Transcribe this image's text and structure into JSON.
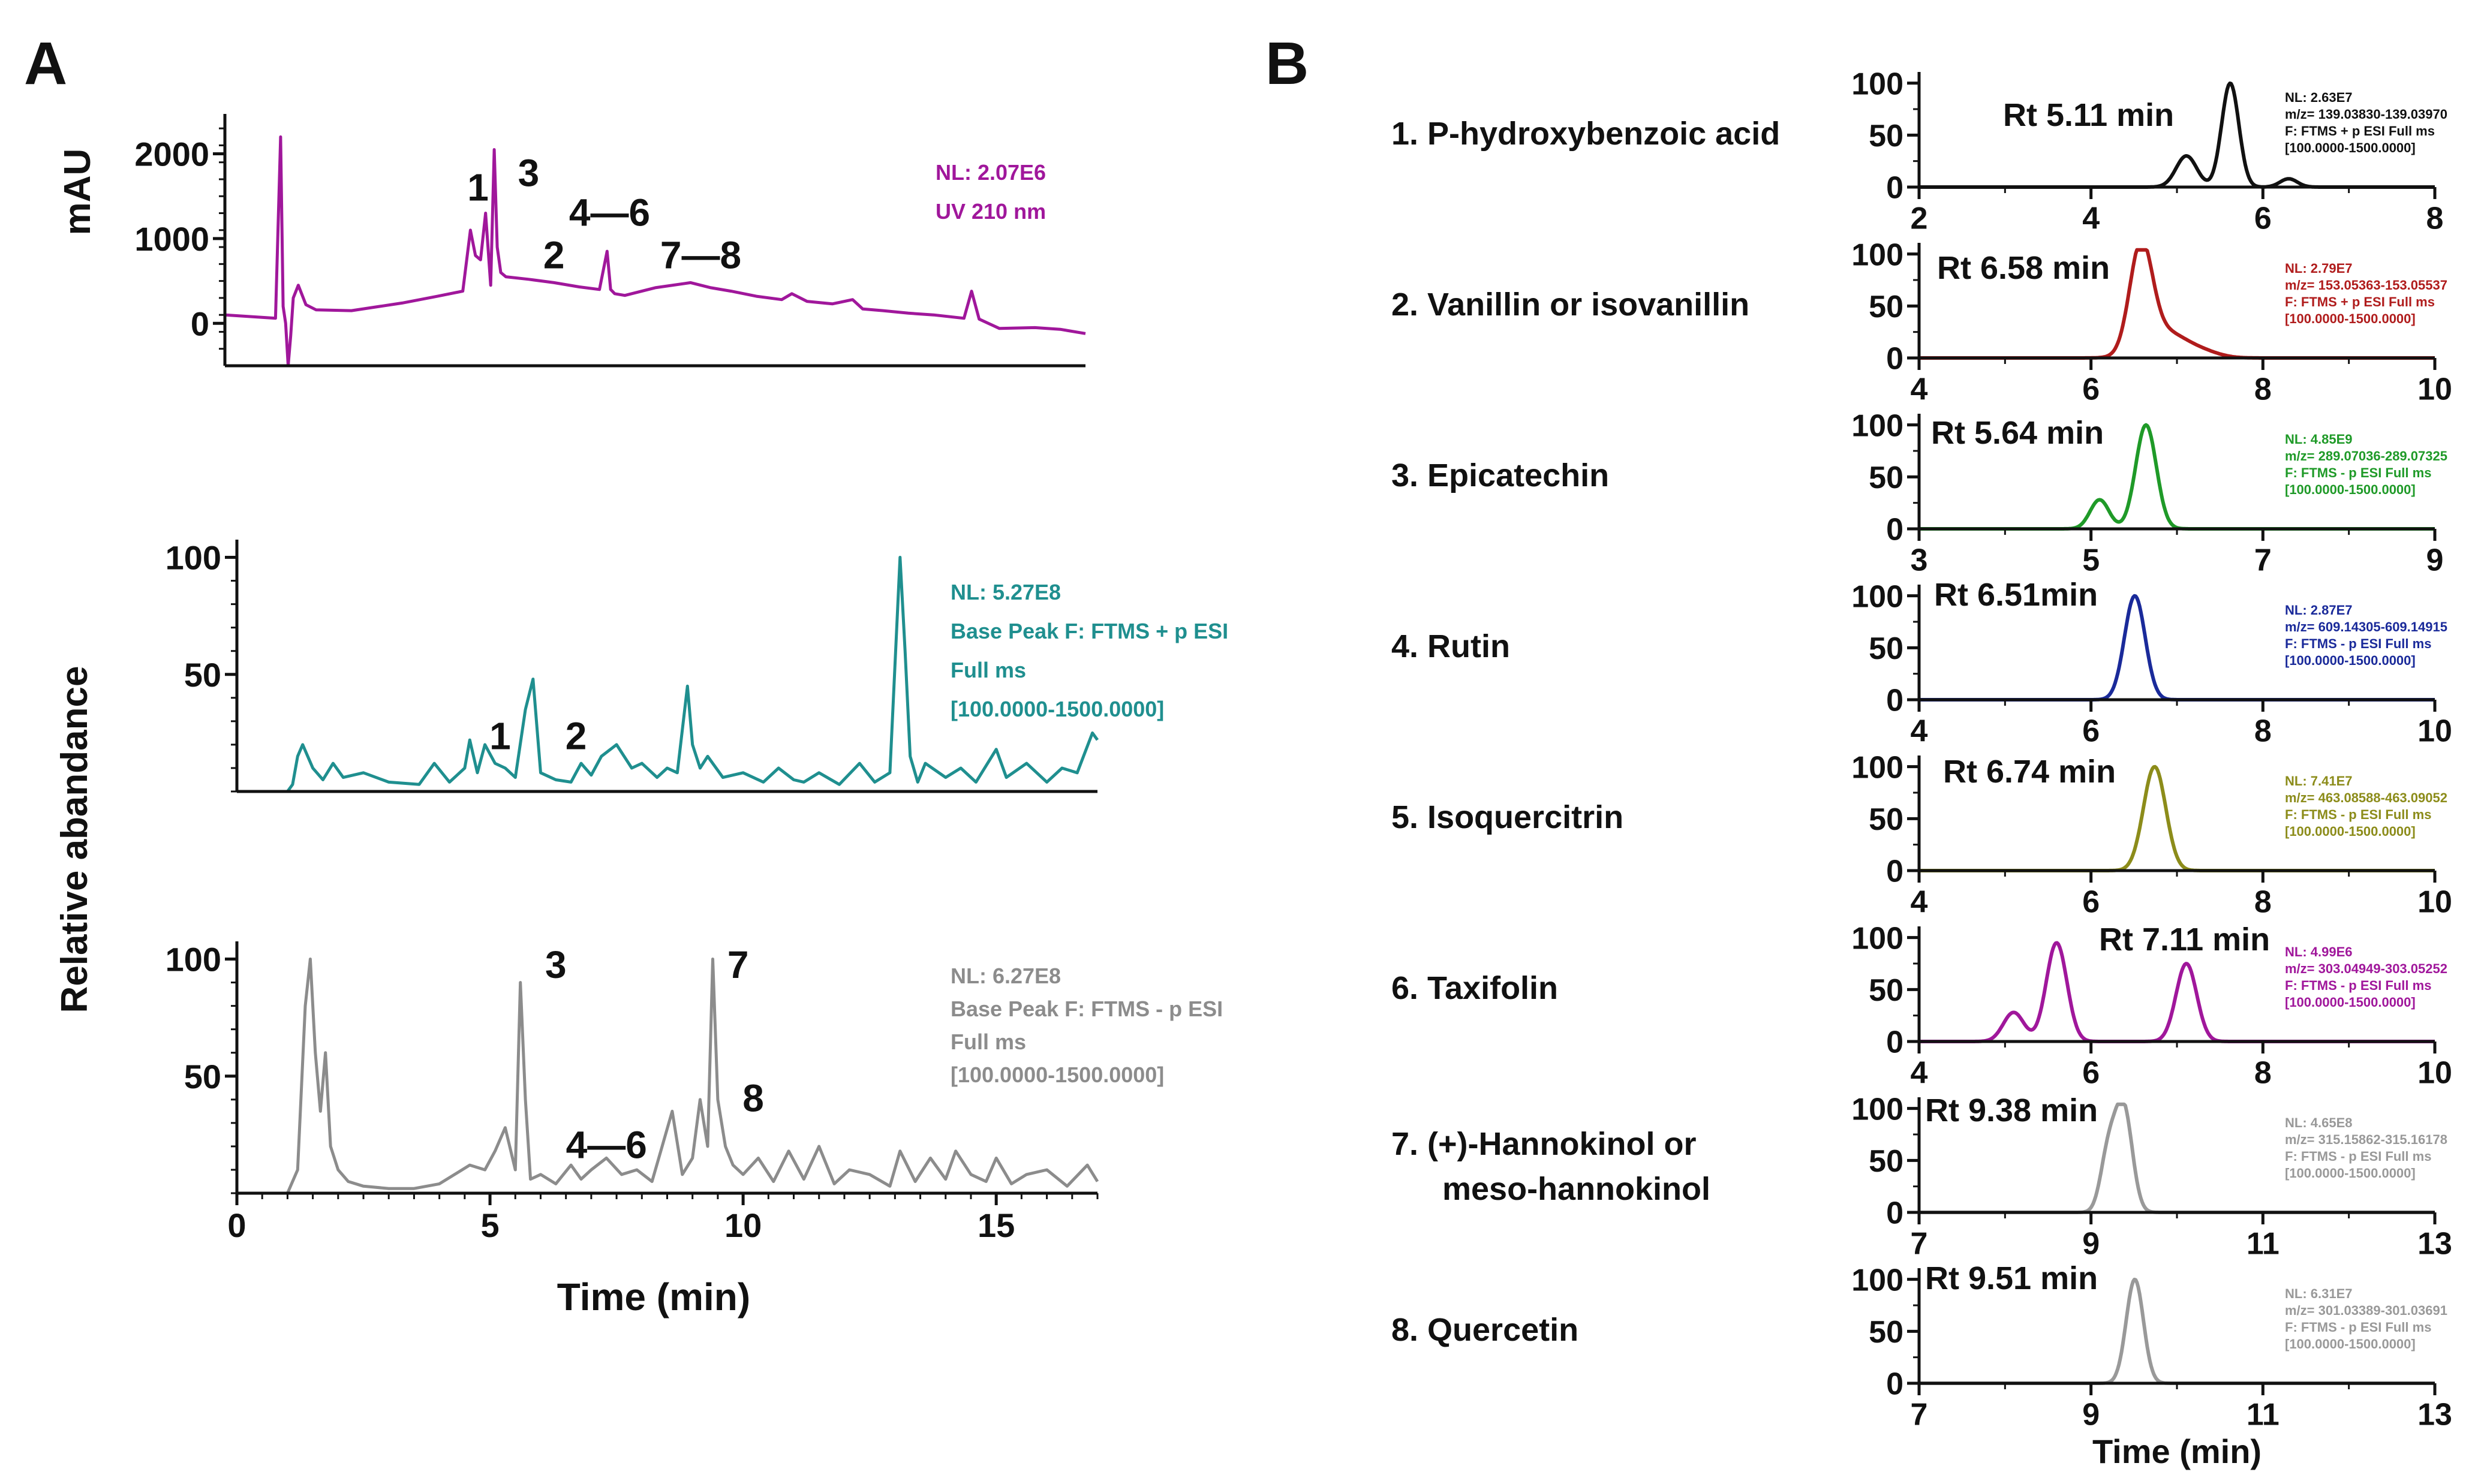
{
  "figure": {
    "panel_a_label": "A",
    "panel_b_label": "B",
    "panel_a_ylabel_top": "mAU",
    "panel_a_ylabel_ms": "Relative abandance",
    "panel_a_xlabel": "Time (min)",
    "panel_b_xlabel": "Time (min)"
  },
  "chart_data": [
    {
      "id": "A1",
      "type": "line",
      "title": "",
      "xlabel": "",
      "ylabel": "mAU",
      "xlim": [
        0,
        17
      ],
      "ylim": [
        -500,
        2400
      ],
      "yticks": [
        0,
        1000,
        2000
      ],
      "ytick_labels": [
        "0",
        "1000",
        "2000"
      ],
      "xticks": [],
      "xtick_labels": [],
      "color": "#a0179b",
      "annotations": [
        "NL: 2.07E6",
        "UV 210 nm"
      ],
      "peak_labels": [
        {
          "text": "1",
          "x": 5.0,
          "y": 1450
        },
        {
          "text": "3",
          "x": 6.0,
          "y": 1620
        },
        {
          "text": "4—6",
          "x": 7.6,
          "y": 1150
        },
        {
          "text": "2",
          "x": 6.5,
          "y": 650
        },
        {
          "text": "7—8",
          "x": 9.4,
          "y": 650
        }
      ],
      "series": [
        {
          "name": "UV 210 nm",
          "x": [
            0,
            1.0,
            1.1,
            1.15,
            1.2,
            1.25,
            1.3,
            1.35,
            1.45,
            1.6,
            1.8,
            2.5,
            3.5,
            4.2,
            4.7,
            4.85,
            4.95,
            5.05,
            5.15,
            5.25,
            5.32,
            5.38,
            5.45,
            5.55,
            6.0,
            6.5,
            7.0,
            7.4,
            7.55,
            7.62,
            7.7,
            7.9,
            8.5,
            9.2,
            9.6,
            10.0,
            10.5,
            11.0,
            11.2,
            11.5,
            12.0,
            12.4,
            12.6,
            13.0,
            13.5,
            14.0,
            14.6,
            14.75,
            14.9,
            15.3,
            16.0,
            16.5,
            17.0
          ],
          "y": [
            100,
            60,
            2200,
            200,
            0,
            -500,
            -150,
            300,
            450,
            220,
            160,
            150,
            240,
            320,
            380,
            1100,
            800,
            750,
            1300,
            450,
            2050,
            900,
            600,
            550,
            520,
            480,
            430,
            400,
            850,
            400,
            350,
            330,
            420,
            480,
            420,
            380,
            320,
            280,
            350,
            260,
            230,
            280,
            170,
            150,
            120,
            100,
            60,
            380,
            50,
            -60,
            -50,
            -70,
            -120
          ]
        }
      ]
    },
    {
      "id": "A2",
      "type": "line",
      "title": "",
      "xlabel": "",
      "ylabel": "Relative abandance",
      "xlim": [
        0,
        17
      ],
      "ylim": [
        0,
        105
      ],
      "yticks": [
        50,
        100
      ],
      "ytick_labels": [
        "50",
        "100"
      ],
      "xticks": [],
      "xtick_labels": [],
      "color": "#1f8f8f",
      "annotations": [
        "NL: 5.27E8",
        "Base Peak F: FTMS + p ESI",
        "Full ms",
        "[100.0000-1500.0000]"
      ],
      "peak_labels": [
        {
          "text": "1",
          "x": 5.2,
          "y": 18
        },
        {
          "text": "2",
          "x": 6.7,
          "y": 18
        }
      ],
      "series": [
        {
          "name": "Base Peak +",
          "x": [
            0,
            1.0,
            1.1,
            1.2,
            1.3,
            1.5,
            1.7,
            1.9,
            2.1,
            2.5,
            3.0,
            3.6,
            3.9,
            4.2,
            4.5,
            4.6,
            4.75,
            4.9,
            5.1,
            5.3,
            5.5,
            5.7,
            5.85,
            6.0,
            6.3,
            6.6,
            6.8,
            7.0,
            7.2,
            7.5,
            7.8,
            8.0,
            8.3,
            8.5,
            8.7,
            8.9,
            9.0,
            9.15,
            9.3,
            9.6,
            10.0,
            10.4,
            10.7,
            11.0,
            11.2,
            11.5,
            11.9,
            12.3,
            12.6,
            12.9,
            13.1,
            13.2,
            13.3,
            13.45,
            13.6,
            14.0,
            14.3,
            14.6,
            15.0,
            15.2,
            15.6,
            16.0,
            16.3,
            16.6,
            16.9,
            17.0
          ],
          "y": [
            0,
            0,
            3,
            15,
            20,
            10,
            5,
            12,
            6,
            8,
            4,
            3,
            12,
            4,
            10,
            22,
            8,
            20,
            12,
            10,
            6,
            35,
            48,
            8,
            5,
            4,
            12,
            7,
            15,
            20,
            10,
            12,
            6,
            10,
            8,
            45,
            20,
            10,
            15,
            6,
            8,
            4,
            10,
            5,
            4,
            8,
            3,
            12,
            4,
            8,
            100,
            60,
            15,
            4,
            12,
            6,
            10,
            4,
            18,
            6,
            12,
            4,
            10,
            8,
            25,
            22
          ]
        }
      ]
    },
    {
      "id": "A3",
      "type": "line",
      "title": "",
      "xlabel": "Time (min)",
      "ylabel": "",
      "xlim": [
        0,
        17
      ],
      "ylim": [
        0,
        105
      ],
      "yticks": [
        50,
        100
      ],
      "ytick_labels": [
        "50",
        "100"
      ],
      "xticks": [
        0,
        5,
        10,
        15
      ],
      "xtick_labels": [
        "0",
        "5",
        "10",
        "15"
      ],
      "color": "#8c8c8c",
      "annotations": [
        "NL: 6.27E8",
        "Base Peak F: FTMS - p ESI",
        "Full ms",
        "[100.0000-1500.0000]"
      ],
      "peak_labels": [
        {
          "text": "3",
          "x": 6.3,
          "y": 92
        },
        {
          "text": "7",
          "x": 9.9,
          "y": 92
        },
        {
          "text": "8",
          "x": 10.2,
          "y": 35
        },
        {
          "text": "4—6",
          "x": 7.3,
          "y": 15
        }
      ],
      "series": [
        {
          "name": "Base Peak -",
          "x": [
            0,
            1.0,
            1.2,
            1.35,
            1.45,
            1.55,
            1.65,
            1.75,
            1.85,
            2.0,
            2.2,
            2.5,
            3.0,
            3.5,
            4.0,
            4.3,
            4.6,
            4.9,
            5.1,
            5.3,
            5.5,
            5.6,
            5.7,
            5.8,
            6.0,
            6.3,
            6.6,
            6.8,
            7.0,
            7.3,
            7.6,
            7.9,
            8.2,
            8.4,
            8.6,
            8.8,
            9.0,
            9.15,
            9.3,
            9.4,
            9.5,
            9.65,
            9.8,
            10.0,
            10.3,
            10.6,
            10.9,
            11.2,
            11.5,
            11.8,
            12.1,
            12.5,
            12.9,
            13.1,
            13.4,
            13.7,
            14.0,
            14.2,
            14.5,
            14.8,
            15.0,
            15.3,
            15.6,
            16.0,
            16.4,
            16.8,
            17.0
          ],
          "y": [
            0,
            0,
            10,
            80,
            100,
            60,
            35,
            60,
            20,
            10,
            5,
            3,
            2,
            2,
            4,
            8,
            12,
            10,
            18,
            28,
            10,
            90,
            40,
            6,
            8,
            4,
            12,
            6,
            10,
            15,
            8,
            10,
            5,
            20,
            35,
            8,
            15,
            40,
            20,
            100,
            40,
            20,
            12,
            8,
            15,
            5,
            18,
            6,
            20,
            4,
            10,
            8,
            3,
            18,
            5,
            15,
            6,
            18,
            8,
            5,
            15,
            4,
            8,
            10,
            3,
            12,
            5
          ]
        }
      ]
    },
    {
      "id": "B1",
      "type": "line",
      "compound": "1. P-hydroxybenzoic acid",
      "rt_label": "Rt 5.11 min",
      "xlim": [
        2,
        8
      ],
      "ylim": [
        0,
        105
      ],
      "xticks": [
        2,
        4,
        6,
        8
      ],
      "xtick_labels": [
        "2",
        "4",
        "6",
        "8"
      ],
      "yticks": [
        0,
        50,
        100
      ],
      "ytick_labels": [
        "0",
        "50",
        "100"
      ],
      "color": "#111111",
      "annotations": [
        "NL: 2.63E7",
        "m/z= 139.03830-139.03970",
        "F: FTMS + p ESI Full ms",
        "[100.0000-1500.0000]"
      ],
      "series": [
        {
          "name": "EIC",
          "peaks": [
            [
              5.11,
              30,
              0.12
            ],
            [
              5.62,
              100,
              0.1
            ],
            [
              6.3,
              8,
              0.1
            ]
          ]
        }
      ]
    },
    {
      "id": "B2",
      "type": "line",
      "compound": "2. Vanillin or isovanillin",
      "rt_label": "Rt 6.58 min",
      "xlim": [
        4,
        10
      ],
      "ylim": [
        0,
        105
      ],
      "xticks": [
        4,
        6,
        8,
        10
      ],
      "xtick_labels": [
        "4",
        "6",
        "8",
        "10"
      ],
      "yticks": [
        0,
        50,
        100
      ],
      "ytick_labels": [
        "0",
        "50",
        "100"
      ],
      "color": "#b01c1c",
      "annotations": [
        "NL: 2.79E7",
        "m/z= 153.05363-153.05537",
        "F: FTMS + p ESI Full ms",
        "[100.0000-1500.0000]"
      ],
      "series": [
        {
          "name": "EIC",
          "peaks": [
            [
              6.58,
              100,
              0.13
            ],
            [
              6.85,
              25,
              0.25
            ],
            [
              7.3,
              5,
              0.2
            ]
          ]
        }
      ]
    },
    {
      "id": "B3",
      "type": "line",
      "compound": "3. Epicatechin",
      "rt_label": "Rt 5.64 min",
      "xlim": [
        3,
        9
      ],
      "ylim": [
        0,
        105
      ],
      "xticks": [
        3,
        5,
        7,
        9
      ],
      "xtick_labels": [
        "3",
        "5",
        "7",
        "9"
      ],
      "yticks": [
        0,
        50,
        100
      ],
      "ytick_labels": [
        "0",
        "50",
        "100"
      ],
      "color": "#1f9a28",
      "annotations": [
        "NL: 4.85E9",
        "m/z= 289.07036-289.07325",
        "F: FTMS - p ESI Full ms",
        "[100.0000-1500.0000]"
      ],
      "series": [
        {
          "name": "EIC",
          "peaks": [
            [
              5.1,
              28,
              0.11
            ],
            [
              5.64,
              100,
              0.12
            ]
          ]
        }
      ]
    },
    {
      "id": "B4",
      "type": "line",
      "compound": "4. Rutin",
      "rt_label": "Rt 6.51min",
      "xlim": [
        4,
        10
      ],
      "ylim": [
        0,
        105
      ],
      "xticks": [
        4,
        6,
        8,
        10
      ],
      "xtick_labels": [
        "4",
        "6",
        "8",
        "10"
      ],
      "yticks": [
        0,
        50,
        100
      ],
      "ytick_labels": [
        "0",
        "50",
        "100"
      ],
      "color": "#1a2a9a",
      "annotations": [
        "NL: 2.87E7",
        "m/z= 609.14305-609.14915",
        "F: FTMS - p ESI Full ms",
        "[100.0000-1500.0000]"
      ],
      "series": [
        {
          "name": "EIC",
          "peaks": [
            [
              6.51,
              100,
              0.12
            ]
          ]
        }
      ]
    },
    {
      "id": "B5",
      "type": "line",
      "compound": "5. Isoquercitrin",
      "rt_label": "Rt 6.74 min",
      "xlim": [
        4,
        10
      ],
      "ylim": [
        0,
        105
      ],
      "xticks": [
        4,
        6,
        8,
        10
      ],
      "xtick_labels": [
        "4",
        "6",
        "8",
        "10"
      ],
      "yticks": [
        0,
        50,
        100
      ],
      "ytick_labels": [
        "0",
        "50",
        "100"
      ],
      "color": "#8c8c1a",
      "annotations": [
        "NL: 7.41E7",
        "m/z= 463.08588-463.09052",
        "F: FTMS - p ESI Full ms",
        "[100.0000-1500.0000]"
      ],
      "series": [
        {
          "name": "EIC",
          "peaks": [
            [
              6.74,
              100,
              0.13
            ]
          ]
        }
      ]
    },
    {
      "id": "B6",
      "type": "line",
      "compound": "6. Taxifolin",
      "rt_label": "Rt 7.11 min",
      "xlim": [
        4,
        10
      ],
      "ylim": [
        0,
        105
      ],
      "xticks": [
        4,
        6,
        8,
        10
      ],
      "xtick_labels": [
        "4",
        "6",
        "8",
        "10"
      ],
      "yticks": [
        0,
        50,
        100
      ],
      "ytick_labels": [
        "0",
        "50",
        "100"
      ],
      "color": "#a0179b",
      "annotations": [
        "NL: 4.99E6",
        "m/z= 303.04949-303.05252",
        "F: FTMS - p ESI Full ms",
        "[100.0000-1500.0000]"
      ],
      "series": [
        {
          "name": "EIC",
          "peaks": [
            [
              5.1,
              28,
              0.12
            ],
            [
              5.6,
              95,
              0.12
            ],
            [
              7.11,
              75,
              0.12
            ]
          ]
        }
      ]
    },
    {
      "id": "B7",
      "type": "line",
      "compound": "7. (+)-Hannokinol or",
      "compound_line2": "meso-hannokinol",
      "rt_label": "Rt 9.38 min",
      "xlim": [
        7,
        13
      ],
      "ylim": [
        0,
        105
      ],
      "xticks": [
        7,
        9,
        11,
        13
      ],
      "xtick_labels": [
        "7",
        "9",
        "11",
        "13"
      ],
      "yticks": [
        0,
        50,
        100
      ],
      "ytick_labels": [
        "0",
        "50",
        "100"
      ],
      "color": "#999999",
      "annotations": [
        "NL: 4.65E8",
        "m/z= 315.15862-315.16178",
        "F: FTMS - p ESI Full ms",
        "[100.0000-1500.0000]"
      ],
      "series": [
        {
          "name": "EIC",
          "peaks": [
            [
              9.2,
              55,
              0.09
            ],
            [
              9.38,
              100,
              0.1
            ]
          ]
        }
      ]
    },
    {
      "id": "B8",
      "type": "line",
      "compound": "8. Quercetin",
      "rt_label": "Rt 9.51 min",
      "xlim": [
        7,
        13
      ],
      "ylim": [
        0,
        105
      ],
      "xticks": [
        7,
        9,
        11,
        13
      ],
      "xtick_labels": [
        "7",
        "9",
        "11",
        "13"
      ],
      "yticks": [
        0,
        50,
        100
      ],
      "ytick_labels": [
        "0",
        "50",
        "100"
      ],
      "color": "#999999",
      "annotations": [
        "NL: 6.31E7",
        "m/z= 301.03389-301.03691",
        "F: FTMS - p ESI Full ms",
        "[100.0000-1500.0000]"
      ],
      "series": [
        {
          "name": "EIC",
          "peaks": [
            [
              9.51,
              100,
              0.1
            ]
          ]
        }
      ]
    }
  ]
}
